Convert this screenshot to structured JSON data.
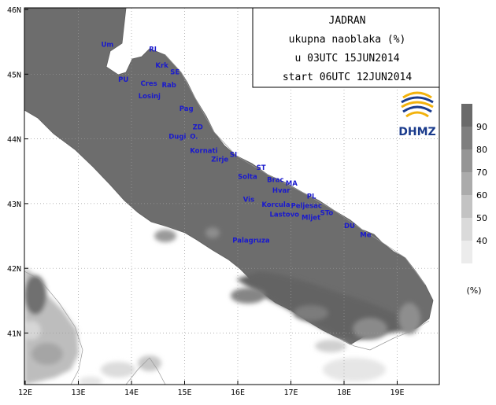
{
  "title_box": {
    "line1": "JADRAN",
    "line2": "ukupna naoblaka (%)",
    "line3": "u 03UTC 15JUN2014",
    "line4": "start 06UTC 12JUN2014"
  },
  "logo": {
    "text": "DHMZ",
    "colors": [
      "#1a3b8c",
      "#f2b20c"
    ]
  },
  "axes": {
    "lon_labels": [
      "12E",
      "13E",
      "14E",
      "15E",
      "16E",
      "17E",
      "18E",
      "19E"
    ],
    "lat_labels": [
      "46N",
      "45N",
      "44N",
      "43N",
      "42N",
      "41N"
    ]
  },
  "legend": {
    "ticks": [
      "90",
      "80",
      "70",
      "60",
      "50",
      "40"
    ],
    "unit": "(%)",
    "colors": [
      "#6a6a6a",
      "#7f7f7f",
      "#959595",
      "#ababab",
      "#c3c3c3",
      "#dadada",
      "#ececec"
    ]
  },
  "places": [
    {
      "name": "Um",
      "lon": 13.43,
      "lat": 45.42
    },
    {
      "name": "RI",
      "lon": 14.33,
      "lat": 45.35
    },
    {
      "name": "Krk",
      "lon": 14.45,
      "lat": 45.1
    },
    {
      "name": "SE",
      "lon": 14.73,
      "lat": 45.0
    },
    {
      "name": "PU",
      "lon": 13.75,
      "lat": 44.88
    },
    {
      "name": "Cres",
      "lon": 14.17,
      "lat": 44.82
    },
    {
      "name": "Rab",
      "lon": 14.57,
      "lat": 44.8
    },
    {
      "name": "Losinj",
      "lon": 14.13,
      "lat": 44.63
    },
    {
      "name": "Pag",
      "lon": 14.9,
      "lat": 44.43
    },
    {
      "name": "ZD",
      "lon": 15.15,
      "lat": 44.15
    },
    {
      "name": "Dugi",
      "lon": 14.7,
      "lat": 44.0
    },
    {
      "name": "O.",
      "lon": 15.1,
      "lat": 44.0
    },
    {
      "name": "Kornati",
      "lon": 15.1,
      "lat": 43.78
    },
    {
      "name": "SI",
      "lon": 15.85,
      "lat": 43.72
    },
    {
      "name": "Zirje",
      "lon": 15.5,
      "lat": 43.65
    },
    {
      "name": "ST",
      "lon": 16.35,
      "lat": 43.52
    },
    {
      "name": "Solta",
      "lon": 16.0,
      "lat": 43.38
    },
    {
      "name": "Brac",
      "lon": 16.55,
      "lat": 43.33
    },
    {
      "name": "MA",
      "lon": 16.9,
      "lat": 43.28
    },
    {
      "name": "Hvar",
      "lon": 16.65,
      "lat": 43.17
    },
    {
      "name": "PL",
      "lon": 17.3,
      "lat": 43.08
    },
    {
      "name": "Vis",
      "lon": 16.1,
      "lat": 43.03
    },
    {
      "name": "Korcula",
      "lon": 16.45,
      "lat": 42.95
    },
    {
      "name": "Peljesac",
      "lon": 17.0,
      "lat": 42.93
    },
    {
      "name": "Lastovo",
      "lon": 16.6,
      "lat": 42.8
    },
    {
      "name": "STo",
      "lon": 17.55,
      "lat": 42.82
    },
    {
      "name": "Mljet",
      "lon": 17.2,
      "lat": 42.75
    },
    {
      "name": "DU",
      "lon": 18.0,
      "lat": 42.62
    },
    {
      "name": "Me",
      "lon": 18.3,
      "lat": 42.48
    },
    {
      "name": "Palagruza",
      "lon": 15.9,
      "lat": 42.4
    }
  ]
}
